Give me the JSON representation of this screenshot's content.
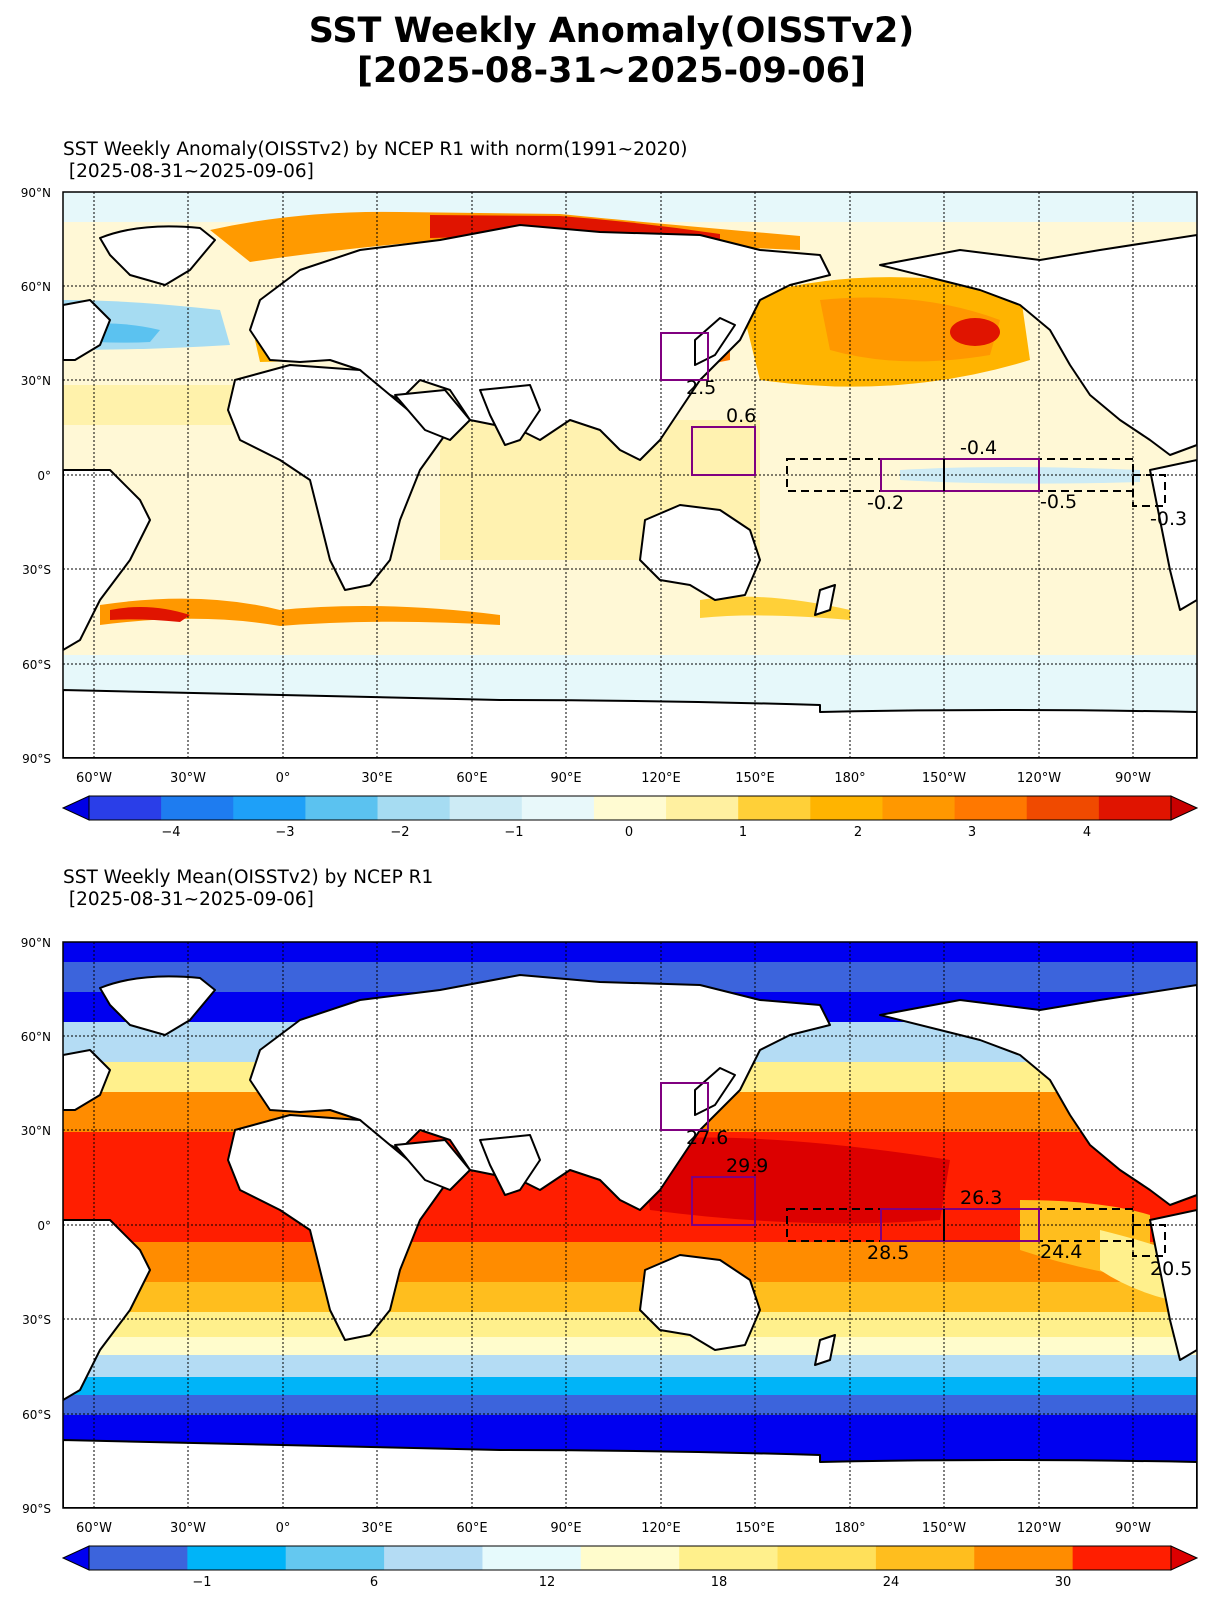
{
  "figure": {
    "title_line1": "SST Weekly Anomaly(OISSTv2)",
    "title_line2": "[2025-08-31~2025-09-06]"
  },
  "lat_labels": [
    "90°N",
    "60°N",
    "30°N",
    "0°",
    "30°S",
    "60°S",
    "90°S"
  ],
  "lon_labels": [
    "60°W",
    "30°W",
    "0°",
    "30°E",
    "60°E",
    "90°E",
    "120°E",
    "150°E",
    "180°",
    "150°W",
    "120°W",
    "90°W"
  ],
  "anomaly_panel": {
    "title_line1": "SST Weekly Anomaly(OISSTv2) by NCEP R1 with norm(1991~2020)",
    "title_line2": " [2025-08-31~2025-09-06]",
    "colorbar": {
      "ticks": [
        "−4",
        "−3",
        "−2",
        "−1",
        "0",
        "1",
        "2",
        "3",
        "4"
      ],
      "colors": [
        "#0000e6",
        "#2a3ee8",
        "#1e7cf0",
        "#1ea0f8",
        "#5bc2f0",
        "#a6dcf2",
        "#cdebf5",
        "#e8f8fa",
        "#fffbd2",
        "#fff0a0",
        "#ffd038",
        "#ffb400",
        "#ff9800",
        "#ff7800",
        "#f04a00",
        "#e01400",
        "#c80000"
      ]
    },
    "box_labels": [
      {
        "name": "japan",
        "text": "2.5"
      },
      {
        "name": "western-pacific",
        "text": "0.6"
      },
      {
        "name": "nino34",
        "text": "-0.4"
      },
      {
        "name": "nino4",
        "text": "-0.2"
      },
      {
        "name": "nino3",
        "text": "-0.5"
      },
      {
        "name": "nino12",
        "text": "-0.3"
      }
    ]
  },
  "mean_panel": {
    "title_line1": "SST Weekly Mean(OISSTv2) by NCEP R1",
    "title_line2": " [2025-08-31~2025-09-06]",
    "colorbar": {
      "ticks": [
        "−1",
        "6",
        "12",
        "18",
        "24",
        "30"
      ],
      "colors": [
        "#0000f0",
        "#3c64dc",
        "#00b4f8",
        "#64c8f0",
        "#b4dcf4",
        "#e6fafc",
        "#fffccc",
        "#fff08c",
        "#ffe05a",
        "#ffbe1e",
        "#ff8c00",
        "#ff1e00",
        "#dc0000"
      ]
    },
    "box_labels": [
      {
        "name": "japan",
        "text": "27.6"
      },
      {
        "name": "western-pacific",
        "text": "29.9"
      },
      {
        "name": "nino34",
        "text": "26.3"
      },
      {
        "name": "nino4",
        "text": "28.5"
      },
      {
        "name": "nino3",
        "text": "24.4"
      },
      {
        "name": "nino12",
        "text": "20.5"
      }
    ]
  }
}
